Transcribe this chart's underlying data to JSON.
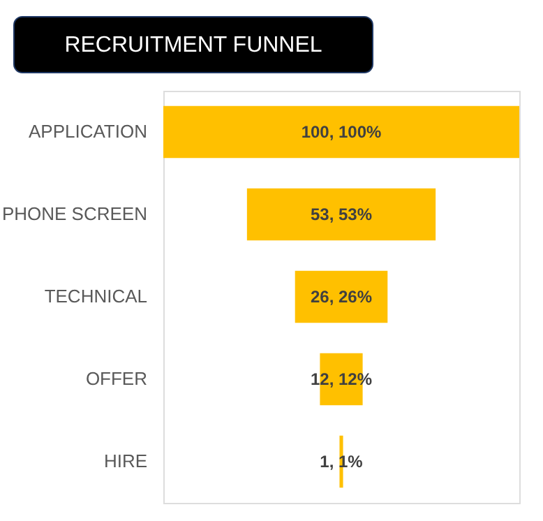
{
  "chart_data": {
    "type": "other",
    "title": "RECRUITMENT FUNNEL",
    "categories": [
      "APPLICATION",
      "PHONE SCREEN",
      "TECHNICAL",
      "OFFER",
      "HIRE"
    ],
    "values": [
      100,
      53,
      26,
      12,
      1
    ],
    "value_labels": [
      "100, 100%",
      "53, 53%",
      "26, 26%",
      "12, 12%",
      "1, 1%"
    ],
    "color": "#ffc000"
  }
}
